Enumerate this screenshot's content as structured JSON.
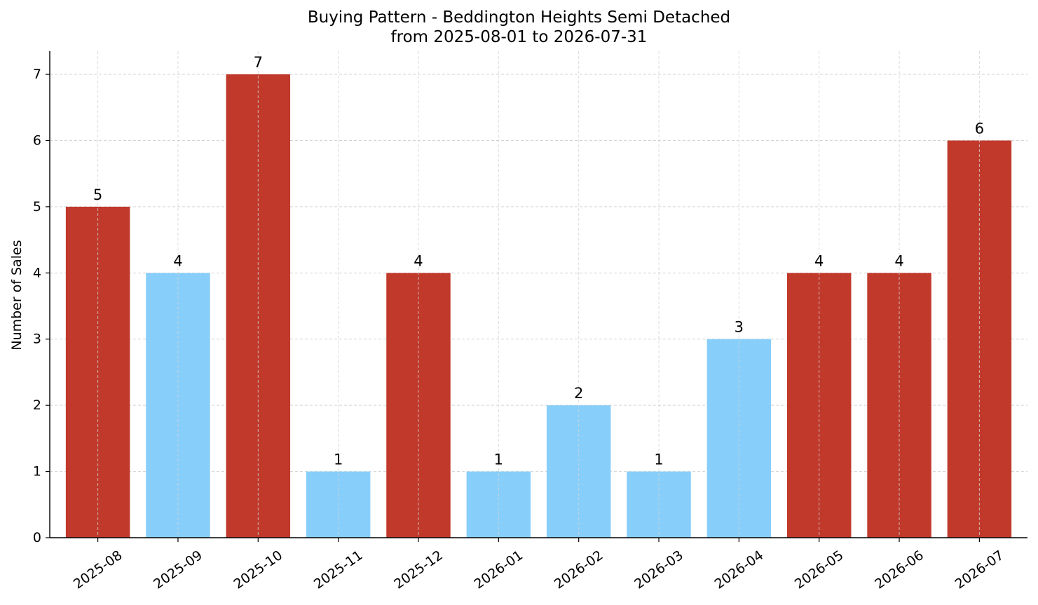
{
  "chart_data": {
    "type": "bar",
    "title": "Buying Pattern - Beddington Heights Semi Detached",
    "subtitle": "from 2025-08-01 to 2026-07-31",
    "xlabel": "",
    "ylabel": "Number of Sales",
    "categories": [
      "2025-08",
      "2025-09",
      "2025-10",
      "2025-11",
      "2025-12",
      "2026-01",
      "2026-02",
      "2026-03",
      "2026-04",
      "2026-05",
      "2026-06",
      "2026-07"
    ],
    "values": [
      5,
      4,
      7,
      1,
      4,
      1,
      2,
      1,
      3,
      4,
      4,
      6
    ],
    "bar_colors": [
      "#c0392b",
      "#87cefa",
      "#c0392b",
      "#87cefa",
      "#c0392b",
      "#87cefa",
      "#87cefa",
      "#87cefa",
      "#87cefa",
      "#c0392b",
      "#c0392b",
      "#c0392b"
    ],
    "yticks": [
      0,
      1,
      2,
      3,
      4,
      5,
      6,
      7
    ],
    "ylim": [
      0,
      7.35
    ],
    "grid": true,
    "data_labels": true
  }
}
